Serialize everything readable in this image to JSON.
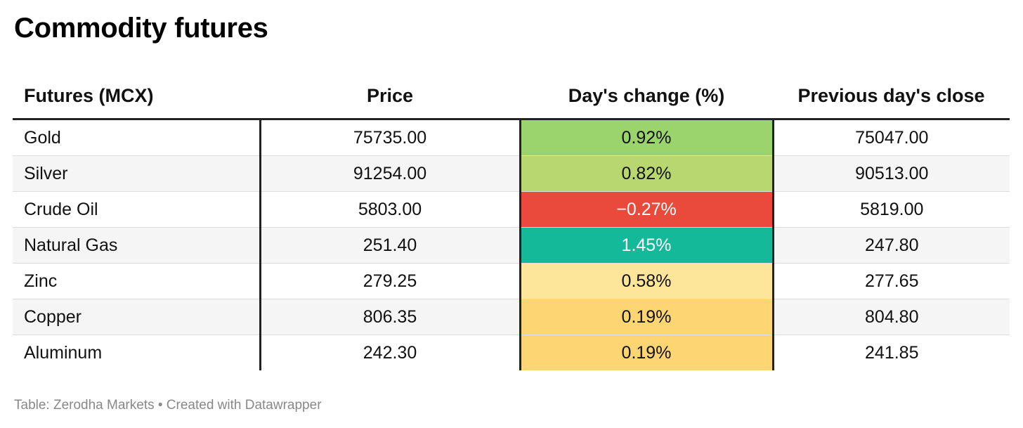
{
  "title": "Commodity futures",
  "source": "Table: Zerodha Markets • Created with Datawrapper",
  "chart_data": {
    "type": "table",
    "title": "Commodity futures",
    "columns": [
      "Futures (MCX)",
      "Price",
      "Day's change (%)",
      "Previous day's close"
    ],
    "rows": [
      {
        "name": "Gold",
        "price": "75735.00",
        "change": "0.92%",
        "prev": "75047.00",
        "bg": "#9bd36c",
        "fg": "#111111"
      },
      {
        "name": "Silver",
        "price": "91254.00",
        "change": "0.82%",
        "prev": "90513.00",
        "bg": "#b8d770",
        "fg": "#111111"
      },
      {
        "name": "Crude Oil",
        "price": "5803.00",
        "change": "−0.27%",
        "prev": "5819.00",
        "bg": "#ea4a3c",
        "fg": "#ffffff"
      },
      {
        "name": "Natural Gas",
        "price": "251.40",
        "change": "1.45%",
        "prev": "247.80",
        "bg": "#14b99a",
        "fg": "#ffffff"
      },
      {
        "name": "Zinc",
        "price": "279.25",
        "change": "0.58%",
        "prev": "277.65",
        "bg": "#fde59a",
        "fg": "#111111"
      },
      {
        "name": "Copper",
        "price": "806.35",
        "change": "0.19%",
        "prev": "804.80",
        "bg": "#fdd673",
        "fg": "#111111"
      },
      {
        "name": "Aluminum",
        "price": "242.30",
        "change": "0.19%",
        "prev": "241.85",
        "bg": "#fdd673",
        "fg": "#111111"
      }
    ]
  }
}
